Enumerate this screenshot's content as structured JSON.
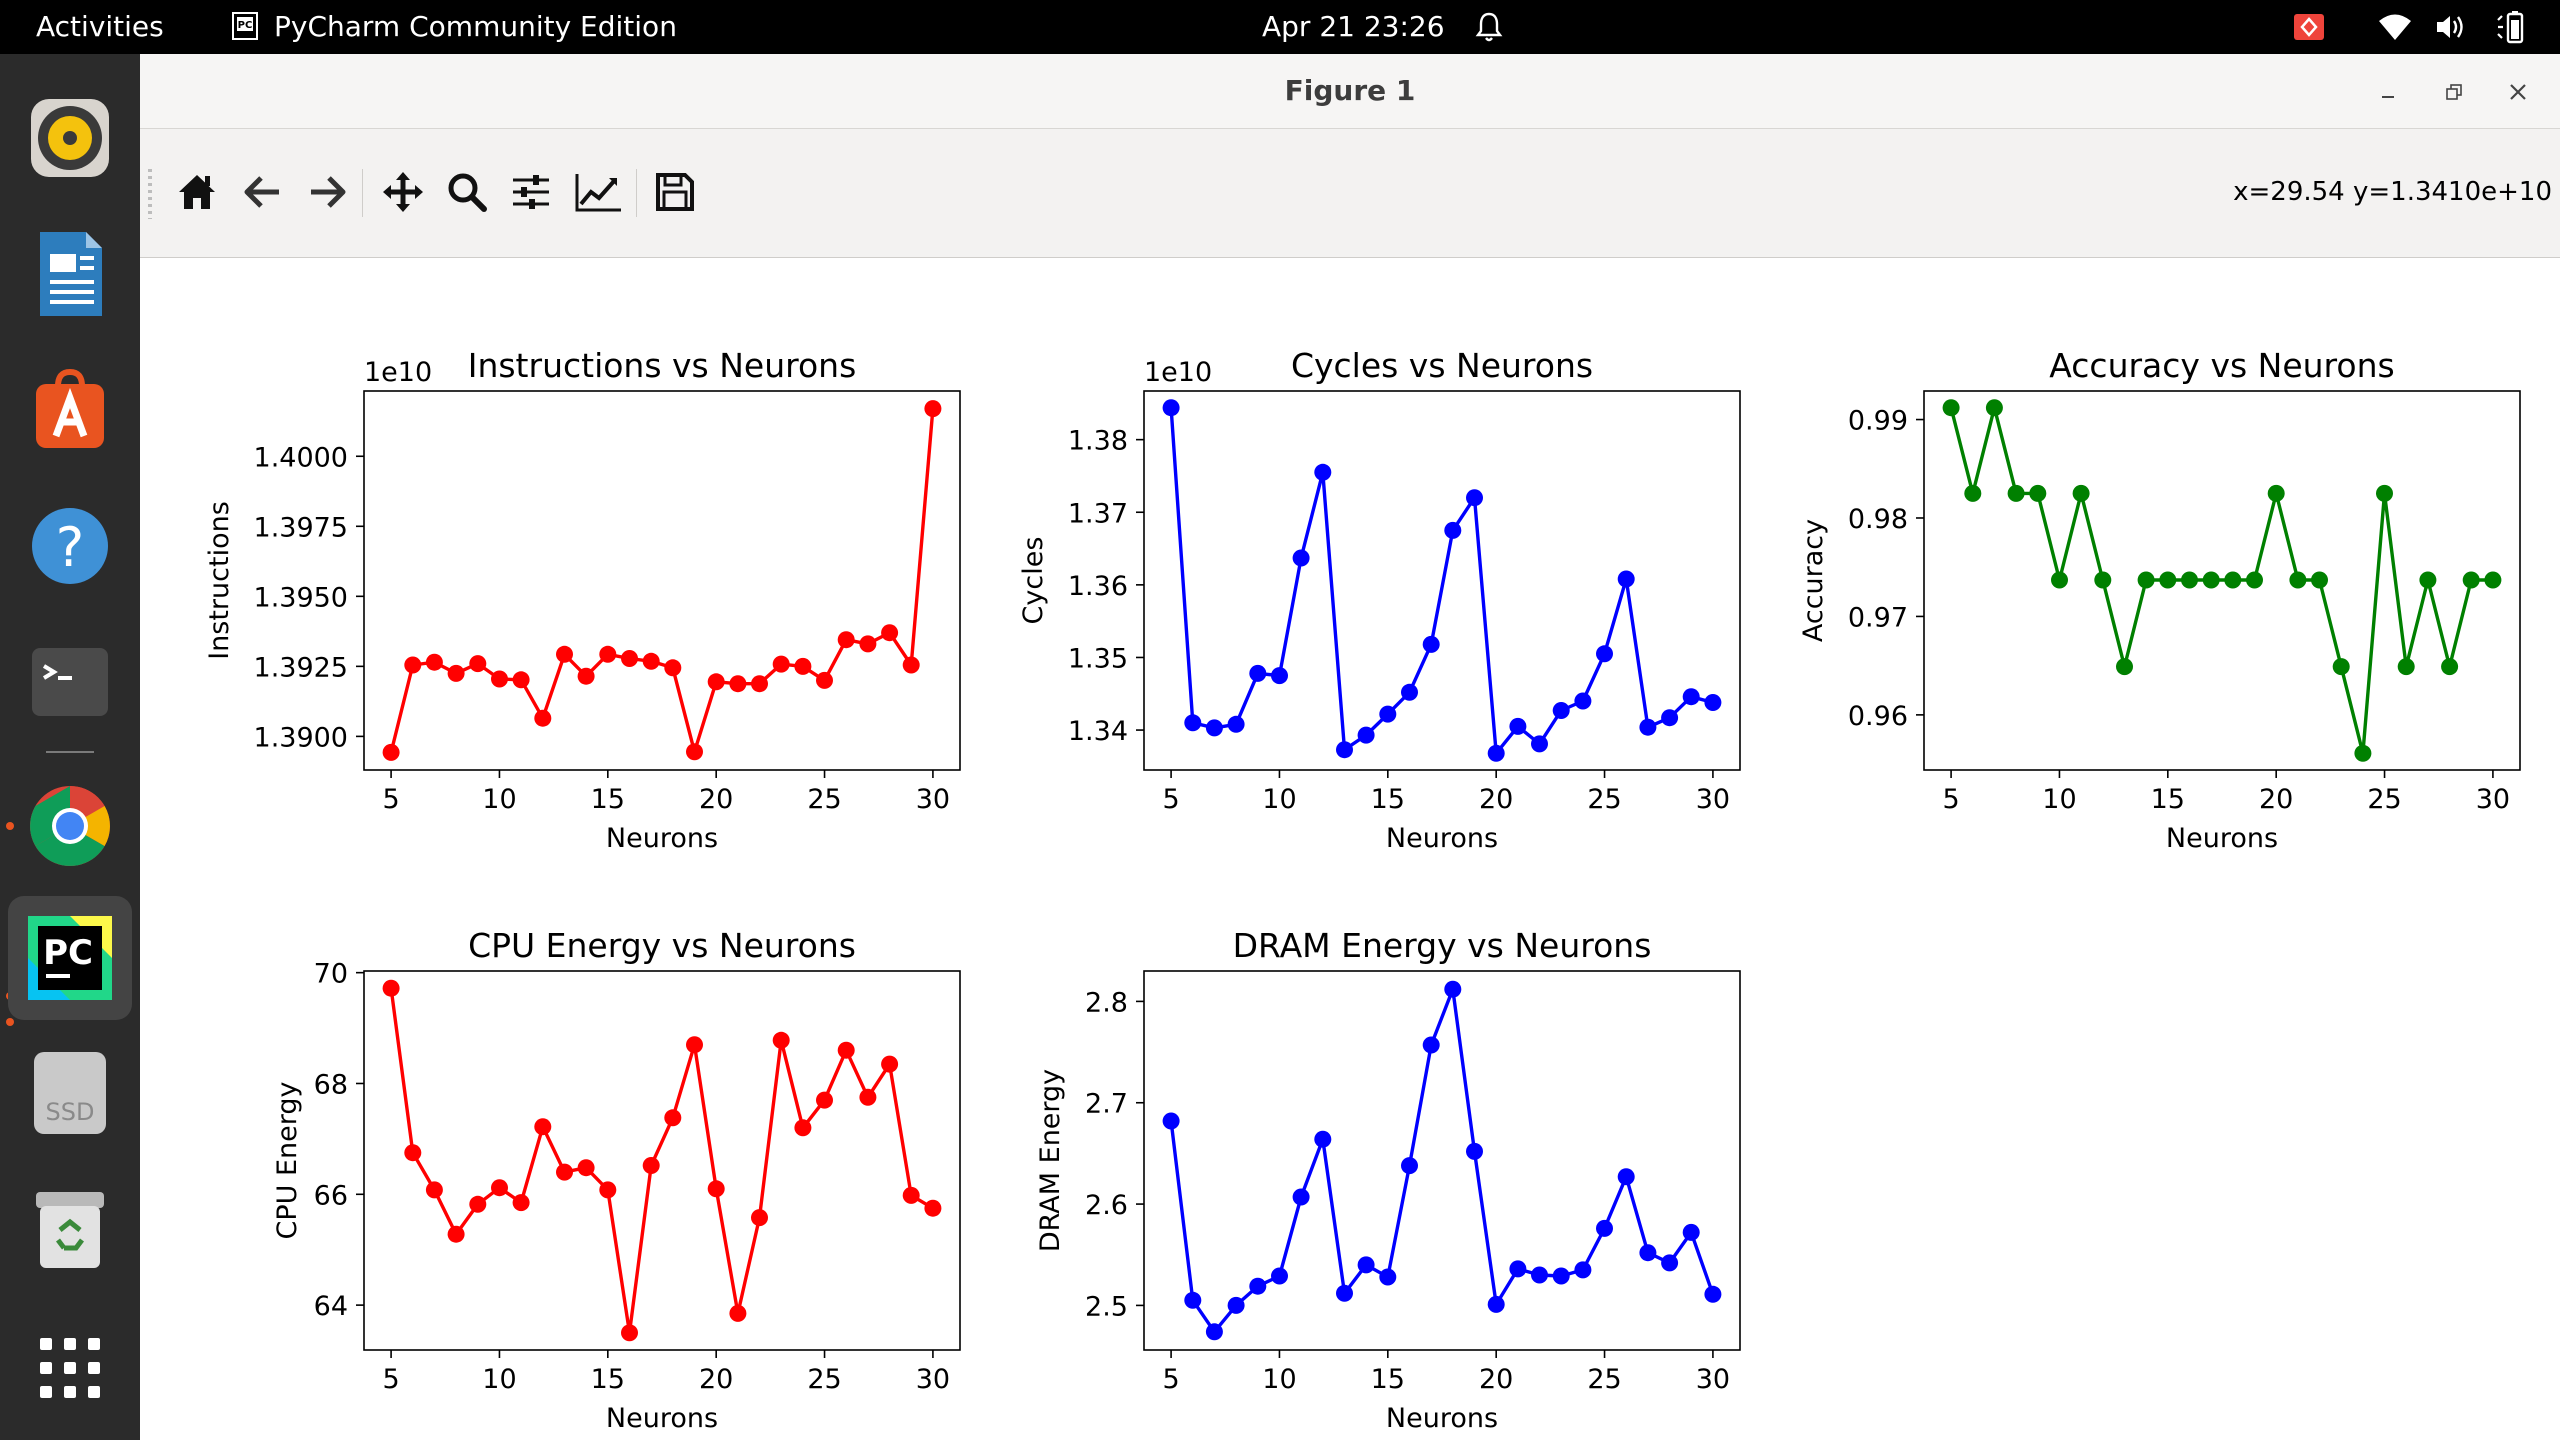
{
  "topbar": {
    "activities": "Activities",
    "app_name": "PyCharm Community Edition",
    "datetime": "Apr 21  23:26"
  },
  "window": {
    "title": "Figure 1",
    "coordinates": "x=29.54 y=1.3410e+10"
  },
  "toolbar": {
    "tools": [
      "home-icon",
      "back-icon",
      "forward-icon",
      "pan-icon",
      "zoom-icon",
      "configure-subplots-icon",
      "edit-axis-icon",
      "save-icon"
    ]
  },
  "dock": {
    "items": [
      "rhythmbox",
      "libreoffice-writer",
      "ubuntu-software",
      "help",
      "terminal",
      "chrome",
      "pycharm",
      "ssd",
      "trash",
      "show-apps"
    ],
    "ssd_label": "SSD"
  },
  "colors": {
    "red": "#ff0000",
    "blue": "#0000ff",
    "green": "#008000",
    "accent": "#e95420"
  },
  "chart_data": [
    {
      "type": "line",
      "title": "Instructions vs Neurons",
      "xlabel": "Neurons",
      "ylabel": "Instructions",
      "offset_text": "1e10",
      "color": "red",
      "x": [
        5,
        6,
        7,
        8,
        9,
        10,
        11,
        12,
        13,
        14,
        15,
        16,
        17,
        18,
        19,
        20,
        21,
        22,
        23,
        24,
        25,
        26,
        27,
        28,
        29,
        30
      ],
      "y": [
        1.38943,
        1.39255,
        1.39265,
        1.39225,
        1.3926,
        1.39205,
        1.39202,
        1.39065,
        1.39293,
        1.39215,
        1.39293,
        1.39278,
        1.39268,
        1.39245,
        1.38945,
        1.39195,
        1.39188,
        1.39188,
        1.39258,
        1.3925,
        1.392,
        1.39345,
        1.3933,
        1.3937,
        1.39255,
        1.4017
      ],
      "xlim": [
        3.75,
        31.25
      ],
      "ylim": [
        1.3888,
        1.40233
      ],
      "xticks": [
        5,
        10,
        15,
        20,
        25,
        30
      ],
      "yticks": [
        1.39,
        1.3925,
        1.395,
        1.3975,
        1.4
      ],
      "xtick_labels": [
        "5",
        "10",
        "15",
        "20",
        "25",
        "30"
      ],
      "ytick_labels": [
        "1.3900",
        "1.3925",
        "1.3950",
        "1.3975",
        "1.4000"
      ]
    },
    {
      "type": "line",
      "title": "Cycles vs Neurons",
      "xlabel": "Neurons",
      "ylabel": "Cycles",
      "offset_text": "1e10",
      "color": "blue",
      "x": [
        5,
        6,
        7,
        8,
        9,
        10,
        11,
        12,
        13,
        14,
        15,
        16,
        17,
        18,
        19,
        20,
        21,
        22,
        23,
        24,
        25,
        26,
        27,
        28,
        29,
        30
      ],
      "y": [
        1.3844,
        1.341,
        1.3403,
        1.3408,
        1.3478,
        1.3475,
        1.3637,
        1.3755,
        1.3373,
        1.3393,
        1.3422,
        1.3452,
        1.3518,
        1.3675,
        1.372,
        1.3368,
        1.3405,
        1.3381,
        1.3427,
        1.344,
        1.3505,
        1.3608,
        1.3404,
        1.3417,
        1.3446,
        1.3438
      ],
      "xlim": [
        3.75,
        31.25
      ],
      "ylim": [
        1.3345,
        1.3867
      ],
      "xticks": [
        5,
        10,
        15,
        20,
        25,
        30
      ],
      "yticks": [
        1.34,
        1.35,
        1.36,
        1.37,
        1.38
      ],
      "xtick_labels": [
        "5",
        "10",
        "15",
        "20",
        "25",
        "30"
      ],
      "ytick_labels": [
        "1.34",
        "1.35",
        "1.36",
        "1.37",
        "1.38"
      ]
    },
    {
      "type": "line",
      "title": "Accuracy vs Neurons",
      "xlabel": "Neurons",
      "ylabel": "Accuracy",
      "offset_text": "",
      "color": "green",
      "x": [
        5,
        6,
        7,
        8,
        9,
        10,
        11,
        12,
        13,
        14,
        15,
        16,
        17,
        18,
        19,
        20,
        21,
        22,
        23,
        24,
        25,
        26,
        27,
        28,
        29,
        30
      ],
      "y": [
        0.9912,
        0.9825,
        0.9912,
        0.9825,
        0.9825,
        0.9737,
        0.9825,
        0.9737,
        0.9649,
        0.9737,
        0.9737,
        0.9737,
        0.9737,
        0.9737,
        0.9737,
        0.9825,
        0.9737,
        0.9737,
        0.9649,
        0.9561,
        0.9825,
        0.9649,
        0.9737,
        0.9649,
        0.9737,
        0.9737
      ],
      "xlim": [
        3.75,
        31.25
      ],
      "ylim": [
        0.9544,
        0.9929
      ],
      "xticks": [
        5,
        10,
        15,
        20,
        25,
        30
      ],
      "yticks": [
        0.96,
        0.97,
        0.98,
        0.99
      ],
      "xtick_labels": [
        "5",
        "10",
        "15",
        "20",
        "25",
        "30"
      ],
      "ytick_labels": [
        "0.96",
        "0.97",
        "0.98",
        "0.99"
      ]
    },
    {
      "type": "line",
      "title": "CPU Energy vs Neurons",
      "xlabel": "Neurons",
      "ylabel": "CPU Energy",
      "offset_text": "",
      "color": "red",
      "x": [
        5,
        6,
        7,
        8,
        9,
        10,
        11,
        12,
        13,
        14,
        15,
        16,
        17,
        18,
        19,
        20,
        21,
        22,
        23,
        24,
        25,
        26,
        27,
        28,
        29,
        30
      ],
      "y": [
        69.72,
        66.75,
        66.08,
        65.28,
        65.82,
        66.12,
        65.85,
        67.22,
        66.4,
        66.48,
        66.08,
        63.5,
        66.52,
        67.38,
        68.7,
        66.1,
        63.85,
        65.58,
        68.78,
        67.2,
        67.7,
        68.6,
        67.75,
        68.35,
        65.98,
        65.75
      ],
      "xlim": [
        3.75,
        31.25
      ],
      "ylim": [
        63.19,
        70.03
      ],
      "xticks": [
        5,
        10,
        15,
        20,
        25,
        30
      ],
      "yticks": [
        64,
        66,
        68,
        70
      ],
      "xtick_labels": [
        "5",
        "10",
        "15",
        "20",
        "25",
        "30"
      ],
      "ytick_labels": [
        "64",
        "66",
        "68",
        "70"
      ]
    },
    {
      "type": "line",
      "title": "DRAM Energy vs Neurons",
      "xlabel": "Neurons",
      "ylabel": "DRAM Energy",
      "offset_text": "",
      "color": "blue",
      "x": [
        5,
        6,
        7,
        8,
        9,
        10,
        11,
        12,
        13,
        14,
        15,
        16,
        17,
        18,
        19,
        20,
        21,
        22,
        23,
        24,
        25,
        26,
        27,
        28,
        29,
        30
      ],
      "y": [
        2.682,
        2.505,
        2.474,
        2.5,
        2.519,
        2.529,
        2.607,
        2.664,
        2.512,
        2.54,
        2.528,
        2.638,
        2.757,
        2.812,
        2.652,
        2.501,
        2.536,
        2.53,
        2.529,
        2.535,
        2.576,
        2.627,
        2.552,
        2.542,
        2.572,
        2.511
      ],
      "xlim": [
        3.75,
        31.25
      ],
      "ylim": [
        2.456,
        2.83
      ],
      "xticks": [
        5,
        10,
        15,
        20,
        25,
        30
      ],
      "yticks": [
        2.5,
        2.6,
        2.7,
        2.8
      ],
      "xtick_labels": [
        "5",
        "10",
        "15",
        "20",
        "25",
        "30"
      ],
      "ytick_labels": [
        "2.5",
        "2.6",
        "2.7",
        "2.8"
      ]
    }
  ]
}
